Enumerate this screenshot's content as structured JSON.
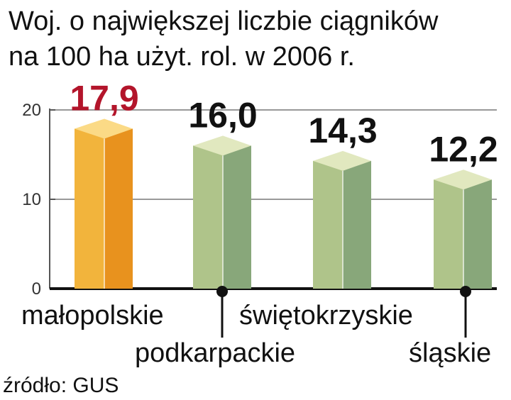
{
  "chart_data": {
    "type": "bar",
    "title_lines": [
      "Woj. o największej liczbie ciągników",
      "na 100 ha użyt. rol. w 2006 r."
    ],
    "categories": [
      "małopolskie",
      "podkarpackie",
      "świętokrzyskie",
      "śląskie"
    ],
    "values": [
      17.9,
      16.0,
      14.3,
      12.2
    ],
    "value_labels": [
      "17,9",
      "16,0",
      "14,3",
      "12,2"
    ],
    "ylim": [
      0,
      20
    ],
    "yticks": [
      0,
      10,
      20
    ],
    "grid": true,
    "source": "źródło: GUS",
    "colors": {
      "highlight_front": "#F2B43C",
      "highlight_side": "#E8921E",
      "highlight_top": "#FBDA86",
      "bar_front": "#AFC48A",
      "bar_side": "#88A77A",
      "bar_top": "#E1E8BF",
      "highlight_label": "#B3152B",
      "label": "#111111",
      "grid": "#999999"
    }
  }
}
